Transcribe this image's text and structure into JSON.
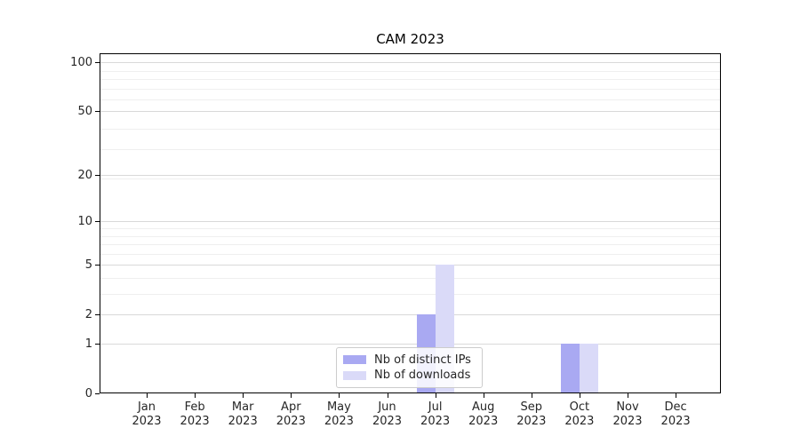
{
  "chart_data": {
    "type": "bar",
    "title": "CAM 2023",
    "categories": [
      "Jan 2023",
      "Feb 2023",
      "Mar 2023",
      "Apr 2023",
      "May 2023",
      "Jun 2023",
      "Jul 2023",
      "Aug 2023",
      "Sep 2023",
      "Oct 2023",
      "Nov 2023",
      "Dec 2023"
    ],
    "series": [
      {
        "name": "Nb of distinct IPs",
        "color": "#a9a9f2",
        "values": [
          0,
          0,
          0,
          0,
          0,
          0,
          2,
          0,
          0,
          1,
          0,
          0
        ]
      },
      {
        "name": "Nb of downloads",
        "color": "#dadaf8",
        "values": [
          0,
          0,
          0,
          0,
          0,
          0,
          5,
          0,
          0,
          1,
          0,
          0
        ]
      }
    ],
    "xlabel": "",
    "ylabel": "",
    "yscale": "log(1+y)",
    "yticks": [
      100,
      50,
      20,
      10,
      5,
      2,
      1,
      0
    ],
    "ylim": [
      0,
      115
    ],
    "grid": "horizontal, major and minor",
    "legend_position": "lower center",
    "colors": {
      "grid_major": "#d9d9d9",
      "grid_minor": "#efefef",
      "axis_frame": "#000000",
      "tick_text": "#262626"
    }
  }
}
